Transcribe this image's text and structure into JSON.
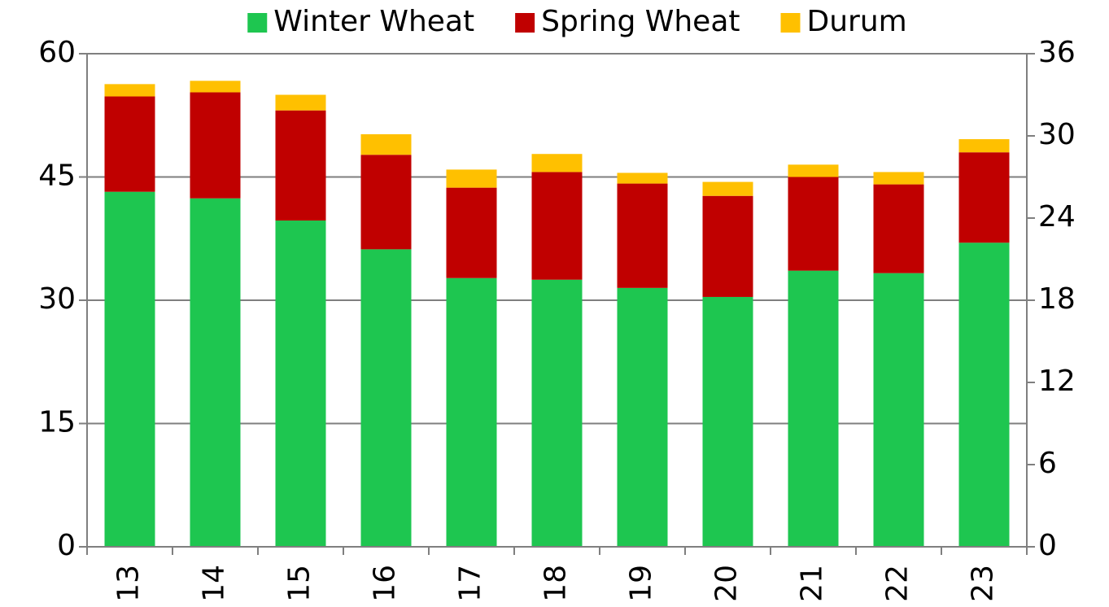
{
  "chart_data": {
    "type": "stacked_bar",
    "categories": [
      "13",
      "14",
      "15",
      "16",
      "17",
      "18",
      "19",
      "20",
      "21",
      "22",
      "23"
    ],
    "series": [
      {
        "name": "Winter Wheat",
        "color": "#1ec650",
        "values": [
          43.2,
          42.4,
          39.7,
          36.2,
          32.7,
          32.5,
          31.5,
          30.4,
          33.6,
          33.3,
          37.0
        ]
      },
      {
        "name": "Spring Wheat",
        "color": "#c00000",
        "values": [
          11.6,
          12.9,
          13.4,
          11.5,
          11.0,
          13.1,
          12.7,
          12.3,
          11.4,
          10.8,
          11.0
        ]
      },
      {
        "name": "Durum",
        "color": "#ffc000",
        "values": [
          1.5,
          1.4,
          1.9,
          2.5,
          2.2,
          2.2,
          1.3,
          1.7,
          1.5,
          1.5,
          1.6
        ]
      }
    ],
    "ylim": [
      0,
      60
    ],
    "yticks": [
      0,
      15,
      30,
      45,
      60
    ],
    "y2lim": [
      0,
      36
    ],
    "y2ticks": [
      0,
      6,
      12,
      18,
      24,
      30,
      36
    ],
    "grid": true,
    "legend": "top"
  }
}
